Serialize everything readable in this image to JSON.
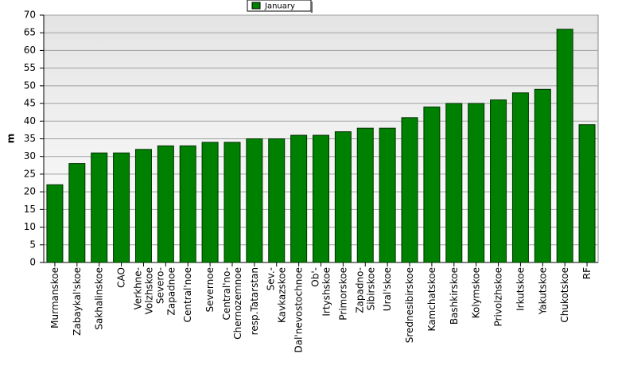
{
  "chart_data": {
    "type": "bar",
    "y_label": "m",
    "categories": [
      "Murmanskoe",
      "Zabaykal'skoe",
      "Sakhalinskoe",
      "CAO",
      "Verkhne-Volzhskoe",
      "Severo-Zapadnoe",
      "Central'noe",
      "Severnoe",
      "Central'no-Chernozemnoe",
      "resp.Tatarstan",
      "Sev.-Kavkazskoe",
      "Dal'nevostochnoe",
      "Ob'-Irtyshskoe",
      "Primorskoe",
      "Zapadno-Sibirskoe",
      "Ural'skoe",
      "Srednesibirskoe",
      "Kamchatskoe",
      "Bashkirskoe",
      "Kolymskoe",
      "Privolzhskoe",
      "Irkutskoe",
      "Yakutskoe",
      "Chukotskoe",
      "RF"
    ],
    "series": [
      {
        "name": "January",
        "color": "#008000",
        "values": [
          22,
          28,
          31,
          31,
          32,
          33,
          33,
          34,
          34,
          35,
          35,
          36,
          36,
          37,
          38,
          38,
          41,
          44,
          45,
          45,
          46,
          48,
          49,
          66,
          39
        ]
      }
    ],
    "ylim": [
      0,
      70
    ],
    "yticks": [
      0,
      5,
      10,
      15,
      20,
      25,
      30,
      35,
      40,
      45,
      50,
      55,
      60,
      65,
      70
    ],
    "grid": true,
    "legend": "top"
  }
}
